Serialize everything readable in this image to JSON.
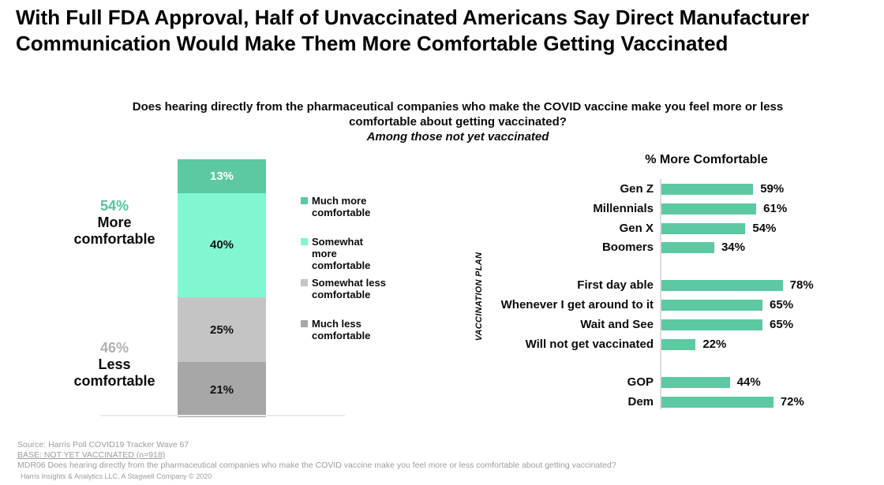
{
  "page": {
    "title": "With Full FDA Approval, Half of Unvaccinated Americans Say Direct Manufacturer Communication Would Make Them More Comfortable Getting Vaccinated",
    "question": "Does hearing directly from the pharmaceutical companies who make the COVID vaccine make you feel more or less comfortable about getting vaccinated?",
    "question_note": "Among those not yet vaccinated"
  },
  "colors": {
    "green": "#5CC9A1",
    "mint": "#82F6D2",
    "light_gray": "#C4C4C5",
    "dark_gray": "#A7A7A8",
    "green_text": "#4FC79B",
    "gray_text": "#B1B1B1",
    "footer_text": "#9C9C9C",
    "axis_line": "#DCDCDC"
  },
  "chart_data": [
    {
      "type": "bar",
      "subtype": "stacked_column",
      "title": "",
      "scope_note": "Among those not yet vaccinated",
      "segments": [
        {
          "label": "Much more\ncomfortable",
          "value": 13,
          "value_label": "13%",
          "color": "#5CC9A1",
          "text_color": "#FFFFFF"
        },
        {
          "label": "Somewhat\nmore\ncomfortable",
          "value": 40,
          "value_label": "40%",
          "color": "#82F6D2",
          "text_color": "#111111"
        },
        {
          "label": "Somewhat less\ncomfortable",
          "value": 25,
          "value_label": "25%",
          "color": "#C4C4C5",
          "text_color": "#111111"
        },
        {
          "label": "Much less\ncomfortable",
          "value": 21,
          "value_label": "21%",
          "color": "#A7A7A8",
          "text_color": "#111111"
        }
      ],
      "summaries": [
        {
          "pct": "54%",
          "label": "More comfortable",
          "pct_color": "#4FC79B"
        },
        {
          "pct": "46%",
          "label": "Less comfortable",
          "pct_color": "#B1B1B1"
        }
      ],
      "legend_position": "right",
      "ylim": [
        0,
        100
      ]
    },
    {
      "type": "bar",
      "subtype": "horizontal",
      "title": "% More Comfortable",
      "ylabel": "VACCINATION PLAN",
      "xlim": [
        0,
        100
      ],
      "bar_color": "#5CC9A1",
      "groups": [
        {
          "name": "generation",
          "rows": [
            {
              "label": "Gen Z",
              "value": 59,
              "value_label": "59%"
            },
            {
              "label": "Millennials",
              "value": 61,
              "value_label": "61%"
            },
            {
              "label": "Gen X",
              "value": 54,
              "value_label": "54%"
            },
            {
              "label": "Boomers",
              "value": 34,
              "value_label": "34%"
            }
          ]
        },
        {
          "name": "vaccination_plan",
          "rows": [
            {
              "label": "First day able",
              "value": 78,
              "value_label": "78%"
            },
            {
              "label": "Whenever I get around to it",
              "value": 65,
              "value_label": "65%"
            },
            {
              "label": "Wait and See",
              "value": 65,
              "value_label": "65%"
            },
            {
              "label": "Will not get vaccinated",
              "value": 22,
              "value_label": "22%"
            }
          ]
        },
        {
          "name": "party",
          "rows": [
            {
              "label": "GOP",
              "value": 44,
              "value_label": "44%"
            },
            {
              "label": "Dem",
              "value": 72,
              "value_label": "72%"
            }
          ]
        }
      ]
    }
  ],
  "footer": {
    "source": "Source: Harris Poll COVID19 Tracker Wave 67",
    "base": "BASE: NOT YET VACCINATED (n=918)",
    "question_code": "MDR06 Does hearing directly from the pharmaceutical companies who make the COVID vaccine make you feel more or less comfortable about getting vaccinated?",
    "company": "Harris Insights & Analytics LLC, A Stagwell Company © 2020"
  }
}
